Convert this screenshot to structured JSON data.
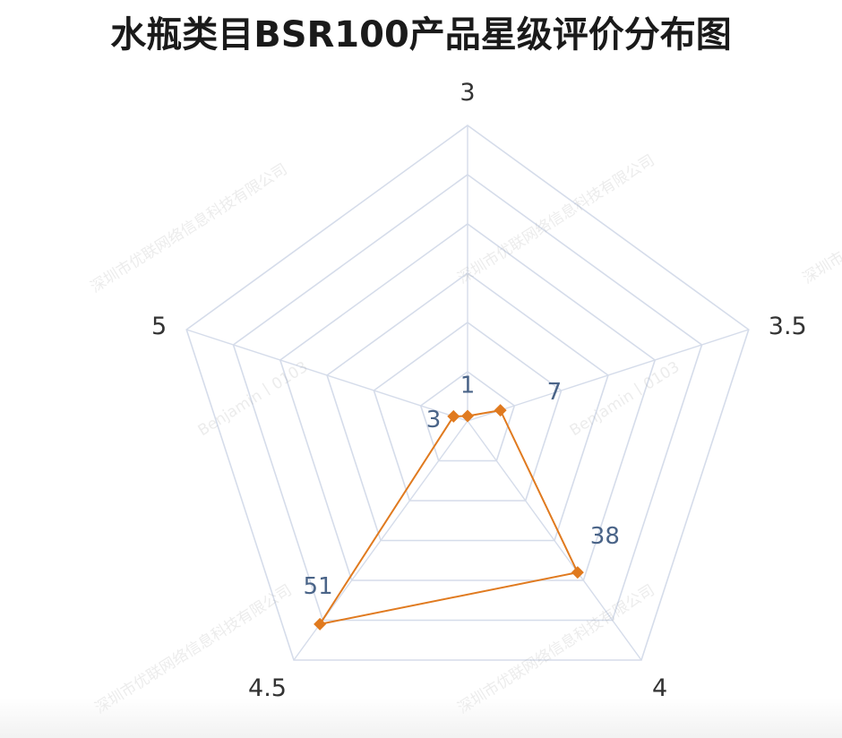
{
  "chart_data": {
    "type": "radar",
    "title": "水瓶类目BSR100产品星级评价分布图",
    "axes": [
      "3",
      "3.5",
      "4",
      "4.5",
      "5"
    ],
    "series": [
      {
        "values": [
          1,
          7,
          38,
          51,
          3
        ]
      }
    ],
    "value_labels": [
      "1",
      "7",
      "38",
      "51",
      "3"
    ],
    "rings": 6,
    "max": 60,
    "colors": {
      "line": "#e07a1f",
      "grid": "#d5dcea",
      "value_label": "#4a6488"
    }
  },
  "watermarks": [
    "深圳市优联网络信息科技有限公司",
    "Benjamin丨0103"
  ]
}
